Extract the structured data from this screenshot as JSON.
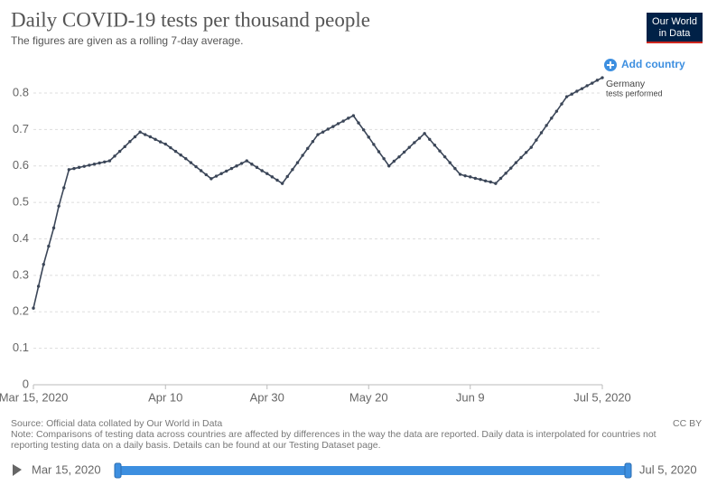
{
  "chart_data": {
    "type": "line",
    "title": "Daily COVID-19 tests per thousand people",
    "subtitle": "The figures are given as a rolling 7-day average.",
    "logo": [
      "Our World",
      "in Data"
    ],
    "add_button": "Add country",
    "x": [
      "2020-03-15",
      "2020-03-16",
      "2020-03-17",
      "2020-03-18",
      "2020-03-19",
      "2020-03-20",
      "2020-03-21",
      "2020-03-22",
      "2020-03-23",
      "2020-03-24",
      "2020-03-25",
      "2020-03-26",
      "2020-03-27",
      "2020-03-28",
      "2020-03-29",
      "2020-03-30",
      "2020-03-31",
      "2020-04-01",
      "2020-04-02",
      "2020-04-03",
      "2020-04-04",
      "2020-04-05",
      "2020-04-06",
      "2020-04-07",
      "2020-04-08",
      "2020-04-09",
      "2020-04-10",
      "2020-04-11",
      "2020-04-12",
      "2020-04-13",
      "2020-04-14",
      "2020-04-15",
      "2020-04-16",
      "2020-04-17",
      "2020-04-18",
      "2020-04-19",
      "2020-04-20",
      "2020-04-21",
      "2020-04-22",
      "2020-04-23",
      "2020-04-24",
      "2020-04-25",
      "2020-04-26",
      "2020-04-27",
      "2020-04-28",
      "2020-04-29",
      "2020-04-30",
      "2020-05-01",
      "2020-05-02",
      "2020-05-03",
      "2020-05-04",
      "2020-05-05",
      "2020-05-06",
      "2020-05-07",
      "2020-05-08",
      "2020-05-09",
      "2020-05-10",
      "2020-05-11",
      "2020-05-12",
      "2020-05-13",
      "2020-05-14",
      "2020-05-15",
      "2020-05-16",
      "2020-05-17",
      "2020-05-18",
      "2020-05-19",
      "2020-05-20",
      "2020-05-21",
      "2020-05-22",
      "2020-05-23",
      "2020-05-24",
      "2020-05-25",
      "2020-05-26",
      "2020-05-27",
      "2020-05-28",
      "2020-05-29",
      "2020-05-30",
      "2020-05-31",
      "2020-06-01",
      "2020-06-02",
      "2020-06-03",
      "2020-06-04",
      "2020-06-05",
      "2020-06-06",
      "2020-06-07",
      "2020-06-08",
      "2020-06-09",
      "2020-06-10",
      "2020-06-11",
      "2020-06-12",
      "2020-06-13",
      "2020-06-14",
      "2020-06-15",
      "2020-06-16",
      "2020-06-17",
      "2020-06-18",
      "2020-06-19",
      "2020-06-20",
      "2020-06-21",
      "2020-06-22",
      "2020-06-23",
      "2020-06-24",
      "2020-06-25",
      "2020-06-26",
      "2020-06-27",
      "2020-06-28",
      "2020-06-29",
      "2020-06-30",
      "2020-07-01",
      "2020-07-02",
      "2020-07-03",
      "2020-07-04",
      "2020-07-05"
    ],
    "series": [
      {
        "name": "Germany",
        "label": "tests performed",
        "color": "#3b4658",
        "values": [
          0.21,
          0.27,
          0.33,
          0.38,
          0.43,
          0.49,
          0.54,
          0.59,
          0.593,
          0.596,
          0.599,
          0.602,
          0.605,
          0.608,
          0.611,
          0.614,
          0.627,
          0.64,
          0.653,
          0.667,
          0.68,
          0.693,
          0.686,
          0.68,
          0.673,
          0.666,
          0.66,
          0.65,
          0.64,
          0.63,
          0.62,
          0.609,
          0.598,
          0.587,
          0.576,
          0.565,
          0.572,
          0.579,
          0.586,
          0.593,
          0.6,
          0.607,
          0.614,
          0.605,
          0.596,
          0.587,
          0.579,
          0.57,
          0.561,
          0.552,
          0.571,
          0.59,
          0.609,
          0.629,
          0.648,
          0.667,
          0.686,
          0.693,
          0.701,
          0.708,
          0.716,
          0.723,
          0.731,
          0.738,
          0.718,
          0.699,
          0.679,
          0.659,
          0.639,
          0.62,
          0.6,
          0.613,
          0.625,
          0.638,
          0.651,
          0.664,
          0.676,
          0.689,
          0.673,
          0.657,
          0.641,
          0.625,
          0.609,
          0.593,
          0.577,
          0.573,
          0.57,
          0.566,
          0.563,
          0.559,
          0.556,
          0.552,
          0.566,
          0.58,
          0.594,
          0.609,
          0.623,
          0.637,
          0.651,
          0.671,
          0.691,
          0.711,
          0.731,
          0.75,
          0.77,
          0.79,
          0.797,
          0.805,
          0.812,
          0.82,
          0.827,
          0.835,
          0.842
        ]
      }
    ],
    "xlim": [
      "2020-03-15",
      "2020-07-05"
    ],
    "xticks": [
      {
        "value": "2020-03-15",
        "label": "Mar 15, 2020"
      },
      {
        "value": "2020-04-10",
        "label": "Apr 10"
      },
      {
        "value": "2020-04-30",
        "label": "Apr 30"
      },
      {
        "value": "2020-05-20",
        "label": "May 20"
      },
      {
        "value": "2020-06-09",
        "label": "Jun 9"
      },
      {
        "value": "2020-07-05",
        "label": "Jul 5, 2020"
      }
    ],
    "ylim": [
      0,
      0.85
    ],
    "yticks": [
      0,
      0.1,
      0.2,
      0.3,
      0.4,
      0.5,
      0.6,
      0.7,
      0.8
    ],
    "grid": true,
    "source": "Source: Official data collated by Our World in Data",
    "license": "CC BY",
    "note": "Note: Comparisons of testing data across countries are affected by differences in the way the data are reported. Daily data is interpolated for countries not reporting testing data on a daily basis. Details can be found at our Testing Dataset page.",
    "timeline": {
      "start": "Mar 15, 2020",
      "end": "Jul 5, 2020"
    }
  }
}
